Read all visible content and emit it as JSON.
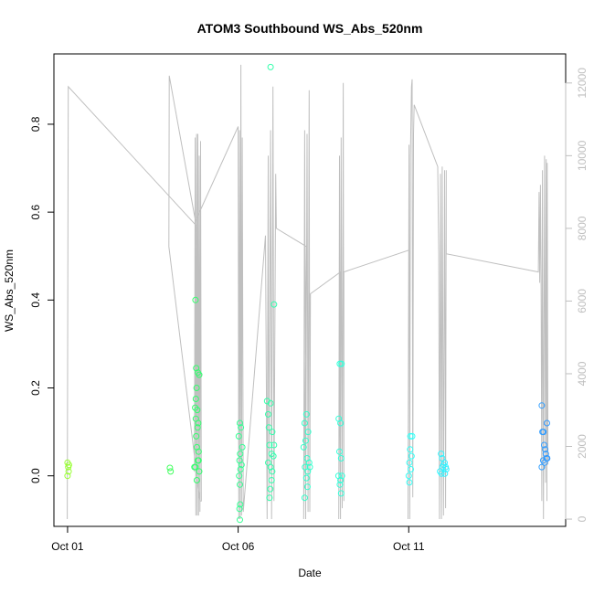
{
  "chart_data": {
    "type": "scatter",
    "title": "ATOM3 Southbound WS_Abs_520nm",
    "xlabel": "Date",
    "ylabel": "WS_Abs_520nm",
    "x_unit": "days (Oct 2016)",
    "xlim": [
      0.6,
      15.6
    ],
    "ylim": [
      -0.115,
      0.96
    ],
    "y2lim": [
      -200,
      12800
    ],
    "x_ticks": [
      {
        "value": 1,
        "label": "Oct 01"
      },
      {
        "value": 6,
        "label": "Oct 06"
      },
      {
        "value": 11,
        "label": "Oct 11"
      }
    ],
    "y_ticks": [
      0.0,
      0.2,
      0.4,
      0.6,
      0.8
    ],
    "y_tick_labels": [
      "0.0",
      "0.2",
      "0.4",
      "0.6",
      "0.8"
    ],
    "y2_ticks": [
      0,
      2000,
      4000,
      6000,
      8000,
      10000,
      12000
    ],
    "y2_tick_labels": [
      "0",
      "2000",
      "4000",
      "6000",
      "8000",
      "10000",
      "12000"
    ],
    "grid": false,
    "legend": "none",
    "colors": {
      "points_gradient": [
        "#99ff33",
        "#33ff66",
        "#33ffcc",
        "#33ffff",
        "#3399ff"
      ],
      "altitude_line": "#bfbfbf",
      "secondary_axis": "#bfbfbf"
    },
    "series": [
      {
        "kind": "points",
        "points": [
          {
            "x": 1.0,
            "y": 0.03
          },
          {
            "x": 1.02,
            "y": 0.02
          },
          {
            "x": 1.04,
            "y": 0.025
          },
          {
            "x": 1.0,
            "y": 0.0
          },
          {
            "x": 1.03,
            "y": 0.01
          },
          {
            "x": 4.0,
            "y": 0.018
          },
          {
            "x": 4.02,
            "y": 0.01
          },
          {
            "x": 4.75,
            "y": 0.4
          },
          {
            "x": 4.77,
            "y": 0.245
          },
          {
            "x": 4.82,
            "y": 0.235
          },
          {
            "x": 4.86,
            "y": 0.23
          },
          {
            "x": 4.78,
            "y": 0.2
          },
          {
            "x": 4.76,
            "y": 0.175
          },
          {
            "x": 4.74,
            "y": 0.155
          },
          {
            "x": 4.8,
            "y": 0.15
          },
          {
            "x": 4.76,
            "y": 0.13
          },
          {
            "x": 4.83,
            "y": 0.12
          },
          {
            "x": 4.81,
            "y": 0.11
          },
          {
            "x": 4.77,
            "y": 0.09
          },
          {
            "x": 4.79,
            "y": 0.065
          },
          {
            "x": 4.84,
            "y": 0.055
          },
          {
            "x": 4.82,
            "y": 0.035
          },
          {
            "x": 4.72,
            "y": 0.02
          },
          {
            "x": 4.86,
            "y": 0.01
          },
          {
            "x": 4.79,
            "y": -0.01
          },
          {
            "x": 4.75,
            "y": 0.02
          },
          {
            "x": 4.84,
            "y": 0.035
          },
          {
            "x": 6.05,
            "y": 0.12
          },
          {
            "x": 6.08,
            "y": 0.11
          },
          {
            "x": 6.02,
            "y": 0.09
          },
          {
            "x": 6.12,
            "y": 0.065
          },
          {
            "x": 6.06,
            "y": 0.05
          },
          {
            "x": 6.04,
            "y": 0.035
          },
          {
            "x": 6.1,
            "y": 0.025
          },
          {
            "x": 6.07,
            "y": 0.015
          },
          {
            "x": 6.03,
            "y": 0.0
          },
          {
            "x": 6.05,
            "y": -0.02
          },
          {
            "x": 6.06,
            "y": -0.065
          },
          {
            "x": 6.04,
            "y": -0.075
          },
          {
            "x": 6.05,
            "y": -0.1
          },
          {
            "x": 6.95,
            "y": 0.93
          },
          {
            "x": 7.05,
            "y": 0.39
          },
          {
            "x": 6.85,
            "y": 0.17
          },
          {
            "x": 6.95,
            "y": 0.165
          },
          {
            "x": 6.88,
            "y": 0.14
          },
          {
            "x": 6.9,
            "y": 0.11
          },
          {
            "x": 7.0,
            "y": 0.1
          },
          {
            "x": 6.92,
            "y": 0.07
          },
          {
            "x": 7.05,
            "y": 0.07
          },
          {
            "x": 6.98,
            "y": 0.05
          },
          {
            "x": 7.03,
            "y": 0.045
          },
          {
            "x": 6.88,
            "y": 0.03
          },
          {
            "x": 6.95,
            "y": 0.02
          },
          {
            "x": 7.0,
            "y": 0.01
          },
          {
            "x": 6.98,
            "y": -0.01
          },
          {
            "x": 6.94,
            "y": -0.03
          },
          {
            "x": 6.92,
            "y": -0.05
          },
          {
            "x": 8.0,
            "y": 0.14
          },
          {
            "x": 7.95,
            "y": 0.12
          },
          {
            "x": 8.05,
            "y": 0.1
          },
          {
            "x": 7.98,
            "y": 0.08
          },
          {
            "x": 7.92,
            "y": 0.065
          },
          {
            "x": 8.02,
            "y": 0.04
          },
          {
            "x": 8.08,
            "y": 0.03
          },
          {
            "x": 7.96,
            "y": 0.02
          },
          {
            "x": 8.04,
            "y": 0.01
          },
          {
            "x": 8.1,
            "y": 0.02
          },
          {
            "x": 8.0,
            "y": -0.005
          },
          {
            "x": 8.03,
            "y": -0.025
          },
          {
            "x": 7.95,
            "y": -0.05
          },
          {
            "x": 8.98,
            "y": 0.255
          },
          {
            "x": 9.03,
            "y": 0.255
          },
          {
            "x": 8.95,
            "y": 0.13
          },
          {
            "x": 9.0,
            "y": 0.12
          },
          {
            "x": 8.97,
            "y": 0.055
          },
          {
            "x": 9.02,
            "y": 0.04
          },
          {
            "x": 8.94,
            "y": 0.0
          },
          {
            "x": 9.04,
            "y": 0.0
          },
          {
            "x": 9.0,
            "y": -0.01
          },
          {
            "x": 8.98,
            "y": -0.02
          },
          {
            "x": 9.02,
            "y": -0.04
          },
          {
            "x": 11.05,
            "y": 0.09
          },
          {
            "x": 11.1,
            "y": 0.09
          },
          {
            "x": 11.04,
            "y": 0.06
          },
          {
            "x": 11.08,
            "y": 0.045
          },
          {
            "x": 11.02,
            "y": 0.03
          },
          {
            "x": 11.06,
            "y": 0.015
          },
          {
            "x": 11.0,
            "y": 0.0
          },
          {
            "x": 11.02,
            "y": -0.015
          },
          {
            "x": 11.95,
            "y": 0.05
          },
          {
            "x": 11.98,
            "y": 0.04
          },
          {
            "x": 12.05,
            "y": 0.03
          },
          {
            "x": 12.08,
            "y": 0.02
          },
          {
            "x": 11.92,
            "y": 0.01
          },
          {
            "x": 12.02,
            "y": 0.025
          },
          {
            "x": 12.1,
            "y": 0.015
          },
          {
            "x": 11.96,
            "y": 0.005
          },
          {
            "x": 12.06,
            "y": 0.005
          },
          {
            "x": 11.99,
            "y": 0.02
          },
          {
            "x": 14.9,
            "y": 0.16
          },
          {
            "x": 15.05,
            "y": 0.12
          },
          {
            "x": 14.92,
            "y": 0.1
          },
          {
            "x": 14.95,
            "y": 0.1
          },
          {
            "x": 14.97,
            "y": 0.07
          },
          {
            "x": 15.0,
            "y": 0.06
          },
          {
            "x": 15.02,
            "y": 0.05
          },
          {
            "x": 15.04,
            "y": 0.04
          },
          {
            "x": 14.94,
            "y": 0.035
          },
          {
            "x": 15.06,
            "y": 0.04
          },
          {
            "x": 14.98,
            "y": 0.03
          },
          {
            "x": 14.9,
            "y": 0.02
          }
        ]
      },
      {
        "kind": "altitude_line",
        "axis": "right",
        "points": [
          [
            0.99,
            0
          ],
          [
            1.02,
            11900
          ],
          [
            4.75,
            8100
          ],
          [
            4.72,
            1300
          ],
          [
            4.74,
            10500
          ],
          [
            4.76,
            100
          ],
          [
            4.78,
            10600
          ],
          [
            4.8,
            100
          ],
          [
            4.82,
            10600
          ],
          [
            4.84,
            100
          ],
          [
            4.86,
            10000
          ],
          [
            4.88,
            200
          ],
          [
            4.9,
            10400
          ],
          [
            4.92,
            500
          ],
          [
            4.88,
            500
          ],
          [
            3.97,
            7500
          ],
          [
            3.98,
            12200
          ],
          [
            4.75,
            8200
          ],
          [
            6.0,
            10800
          ],
          [
            6.02,
            0
          ],
          [
            6.04,
            10700
          ],
          [
            6.06,
            0
          ],
          [
            6.08,
            12500
          ],
          [
            6.1,
            100
          ],
          [
            6.12,
            10500
          ],
          [
            6.15,
            200
          ],
          [
            6.8,
            7800
          ],
          [
            6.85,
            0
          ],
          [
            6.88,
            10000
          ],
          [
            6.9,
            500
          ],
          [
            6.95,
            10700
          ],
          [
            6.98,
            0
          ],
          [
            7.02,
            11900
          ],
          [
            7.05,
            500
          ],
          [
            7.1,
            9500
          ],
          [
            7.12,
            8000
          ],
          [
            8.0,
            7500
          ],
          [
            7.92,
            0
          ],
          [
            7.95,
            10700
          ],
          [
            7.98,
            0
          ],
          [
            8.02,
            10600
          ],
          [
            8.05,
            200
          ],
          [
            8.08,
            11800
          ],
          [
            8.1,
            200
          ],
          [
            8.12,
            6200
          ],
          [
            9.0,
            6800
          ],
          [
            8.95,
            0
          ],
          [
            8.97,
            10000
          ],
          [
            9.0,
            0
          ],
          [
            9.02,
            10500
          ],
          [
            9.05,
            300
          ],
          [
            9.08,
            12000
          ],
          [
            9.1,
            500
          ],
          [
            9.1,
            6800
          ],
          [
            11.0,
            7400
          ],
          [
            10.98,
            0
          ],
          [
            11.01,
            10300
          ],
          [
            11.03,
            0
          ],
          [
            11.05,
            10000
          ],
          [
            11.08,
            11900
          ],
          [
            11.1,
            12100
          ],
          [
            11.12,
            600
          ],
          [
            11.14,
            10600
          ],
          [
            11.16,
            11400
          ],
          [
            11.85,
            9700
          ],
          [
            11.88,
            7300
          ],
          [
            11.9,
            0
          ],
          [
            11.93,
            9500
          ],
          [
            11.96,
            0
          ],
          [
            11.98,
            9700
          ],
          [
            12.02,
            100
          ],
          [
            12.05,
            9600
          ],
          [
            12.08,
            300
          ],
          [
            12.1,
            9600
          ],
          [
            12.1,
            7300
          ],
          [
            14.8,
            6800
          ],
          [
            14.82,
            9000
          ],
          [
            14.84,
            6500
          ],
          [
            14.86,
            9200
          ],
          [
            14.88,
            6600
          ],
          [
            14.9,
            500
          ],
          [
            14.92,
            9600
          ],
          [
            14.95,
            0
          ],
          [
            14.98,
            10000
          ],
          [
            15.01,
            1000
          ],
          [
            15.03,
            9900
          ],
          [
            15.05,
            500
          ],
          [
            15.06,
            9800
          ],
          [
            15.08,
            1500
          ]
        ]
      }
    ]
  }
}
